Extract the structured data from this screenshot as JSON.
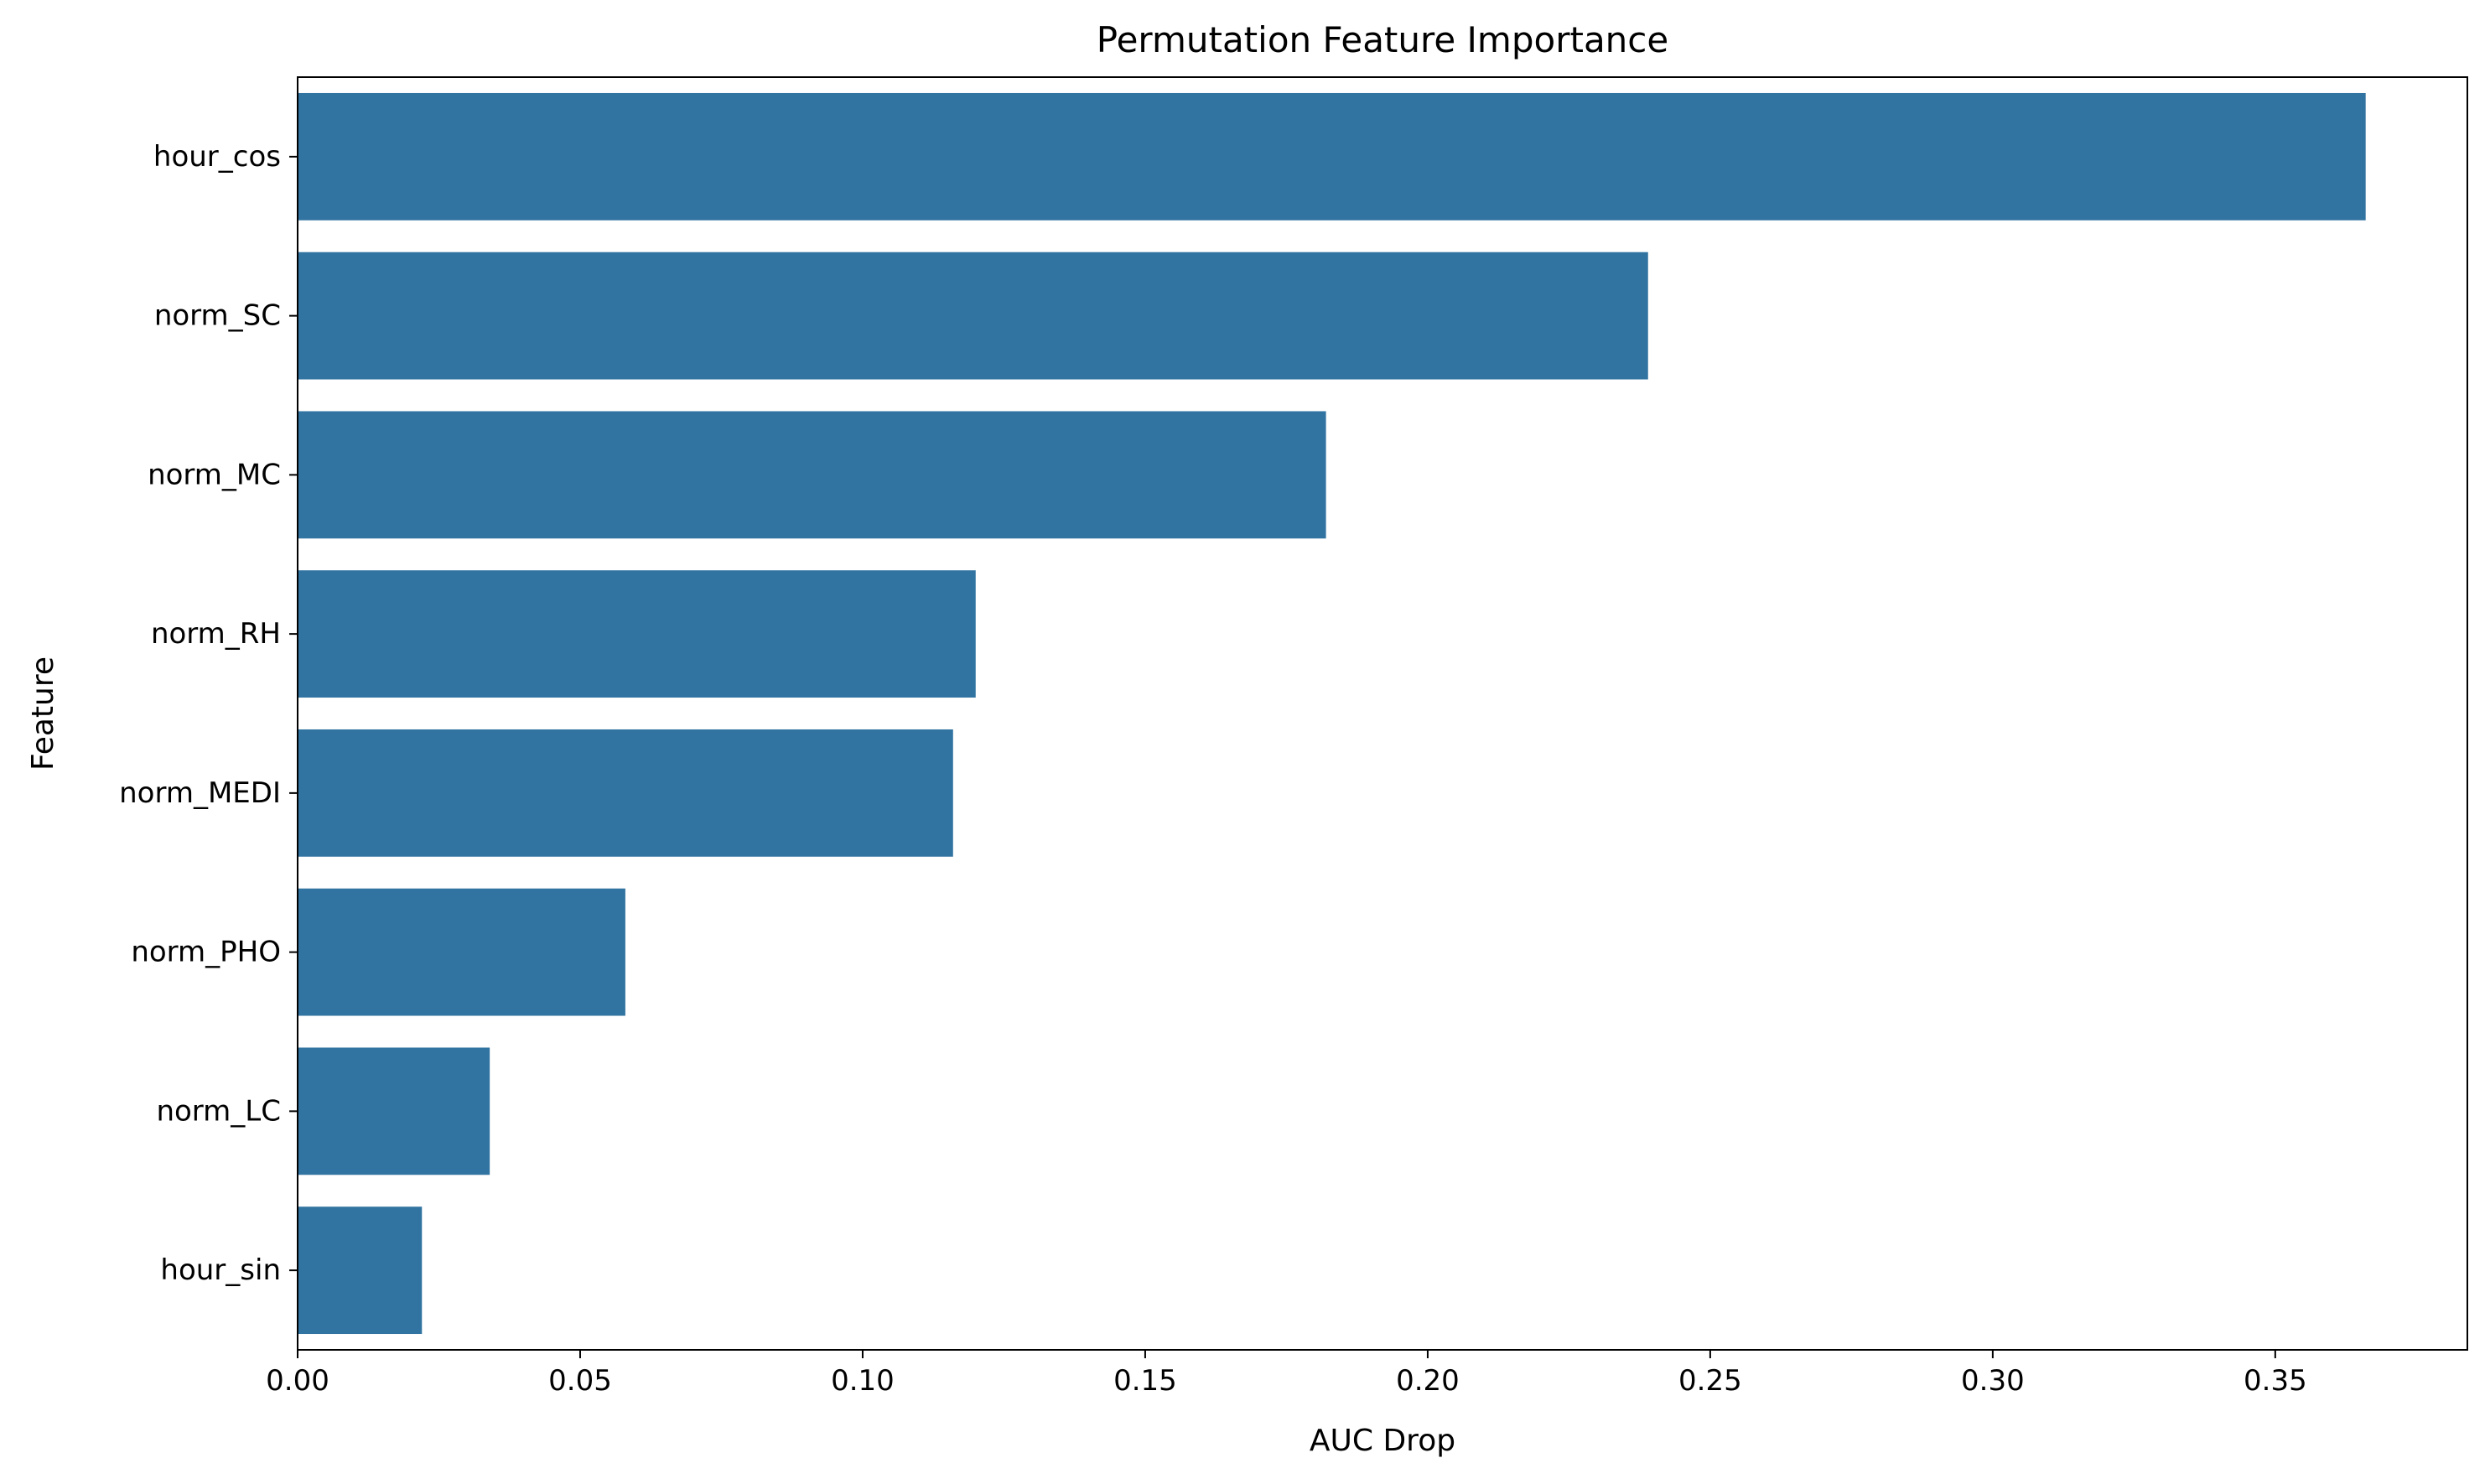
{
  "chart_data": {
    "type": "bar",
    "orientation": "horizontal",
    "title": "Permutation Feature Importance",
    "xlabel": "AUC Drop",
    "ylabel": "Feature",
    "categories": [
      "hour_cos",
      "norm_SC",
      "norm_MC",
      "norm_RH",
      "norm_MEDI",
      "norm_PHO",
      "norm_LC",
      "hour_sin"
    ],
    "values": [
      0.366,
      0.239,
      0.182,
      0.12,
      0.116,
      0.058,
      0.034,
      0.022
    ],
    "xlim": [
      0,
      0.384
    ],
    "xticks": [
      0.0,
      0.05,
      0.1,
      0.15,
      0.2,
      0.25,
      0.3,
      0.35
    ],
    "xtick_labels": [
      "0.00",
      "0.05",
      "0.10",
      "0.15",
      "0.20",
      "0.25",
      "0.30",
      "0.35"
    ],
    "bar_color": "#3274a1",
    "grid": false,
    "legend": "none"
  }
}
